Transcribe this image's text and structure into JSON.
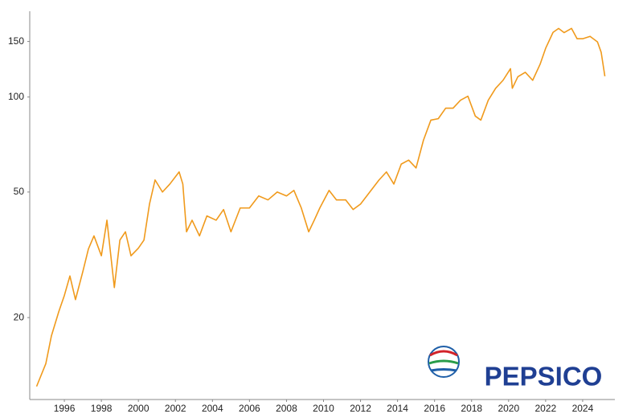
{
  "chart_data": {
    "type": "line",
    "watermark": "PEPSICO",
    "color": "#f09a1c",
    "log_scale_y": true,
    "grid": false,
    "xlim": [
      1994.13,
      2025.74
    ],
    "xticks": [
      1996,
      1998,
      2000,
      2002,
      2004,
      2006,
      2008,
      2010,
      2012,
      2014,
      2016,
      2018,
      2020,
      2022,
      2024
    ],
    "ylim": [
      11,
      187
    ],
    "yticks": [
      20,
      50,
      100,
      150
    ],
    "x": [
      1994.5,
      1995.0,
      1995.3,
      1995.7,
      1996.0,
      1996.3,
      1996.6,
      1997.0,
      1997.3,
      1997.6,
      1998.0,
      1998.3,
      1998.7,
      1999.0,
      1999.3,
      1999.6,
      2000.0,
      2000.3,
      2000.6,
      2000.9,
      2001.3,
      2001.7,
      2002.2,
      2002.4,
      2002.6,
      2002.9,
      2003.3,
      2003.7,
      2004.2,
      2004.6,
      2005.0,
      2005.5,
      2006.0,
      2006.5,
      2007.0,
      2007.5,
      2008.0,
      2008.4,
      2008.8,
      2009.2,
      2009.5,
      2009.8,
      2010.3,
      2010.7,
      2011.2,
      2011.6,
      2012.0,
      2012.5,
      2013.0,
      2013.4,
      2013.8,
      2014.2,
      2014.6,
      2015.0,
      2015.4,
      2015.8,
      2016.2,
      2016.6,
      2017.0,
      2017.4,
      2017.8,
      2018.2,
      2018.5,
      2018.9,
      2019.3,
      2019.7,
      2020.1,
      2020.2,
      2020.5,
      2020.9,
      2021.3,
      2021.7,
      2022.0,
      2022.4,
      2022.7,
      2023.0,
      2023.4,
      2023.7,
      2024.0,
      2024.4,
      2024.8,
      2025.0,
      2025.2
    ],
    "values": [
      12.1,
      14.3,
      17.5,
      20.9,
      23.5,
      27.1,
      22.8,
      28,
      33,
      36.3,
      31.4,
      40.7,
      24.9,
      35.2,
      37.4,
      31.4,
      33.2,
      35.2,
      45.8,
      54.6,
      50,
      53,
      57.9,
      53,
      37.4,
      40.7,
      36.3,
      42,
      40.7,
      44,
      37.4,
      44.5,
      44.5,
      48.6,
      47.2,
      50,
      48.6,
      50.6,
      44.5,
      37.4,
      40.7,
      44.5,
      50.6,
      47.2,
      47.2,
      44,
      45.8,
      50,
      54.6,
      57.9,
      53,
      61.3,
      63.1,
      59.6,
      73,
      84.5,
      85.4,
      92.2,
      92.2,
      97.7,
      100.6,
      87,
      84.5,
      97.7,
      106.6,
      113,
      123,
      106.6,
      116,
      119.8,
      113,
      127,
      142.7,
      160.3,
      165,
      160,
      165,
      153,
      153,
      155.7,
      149.5,
      138.6,
      116.4
    ]
  }
}
